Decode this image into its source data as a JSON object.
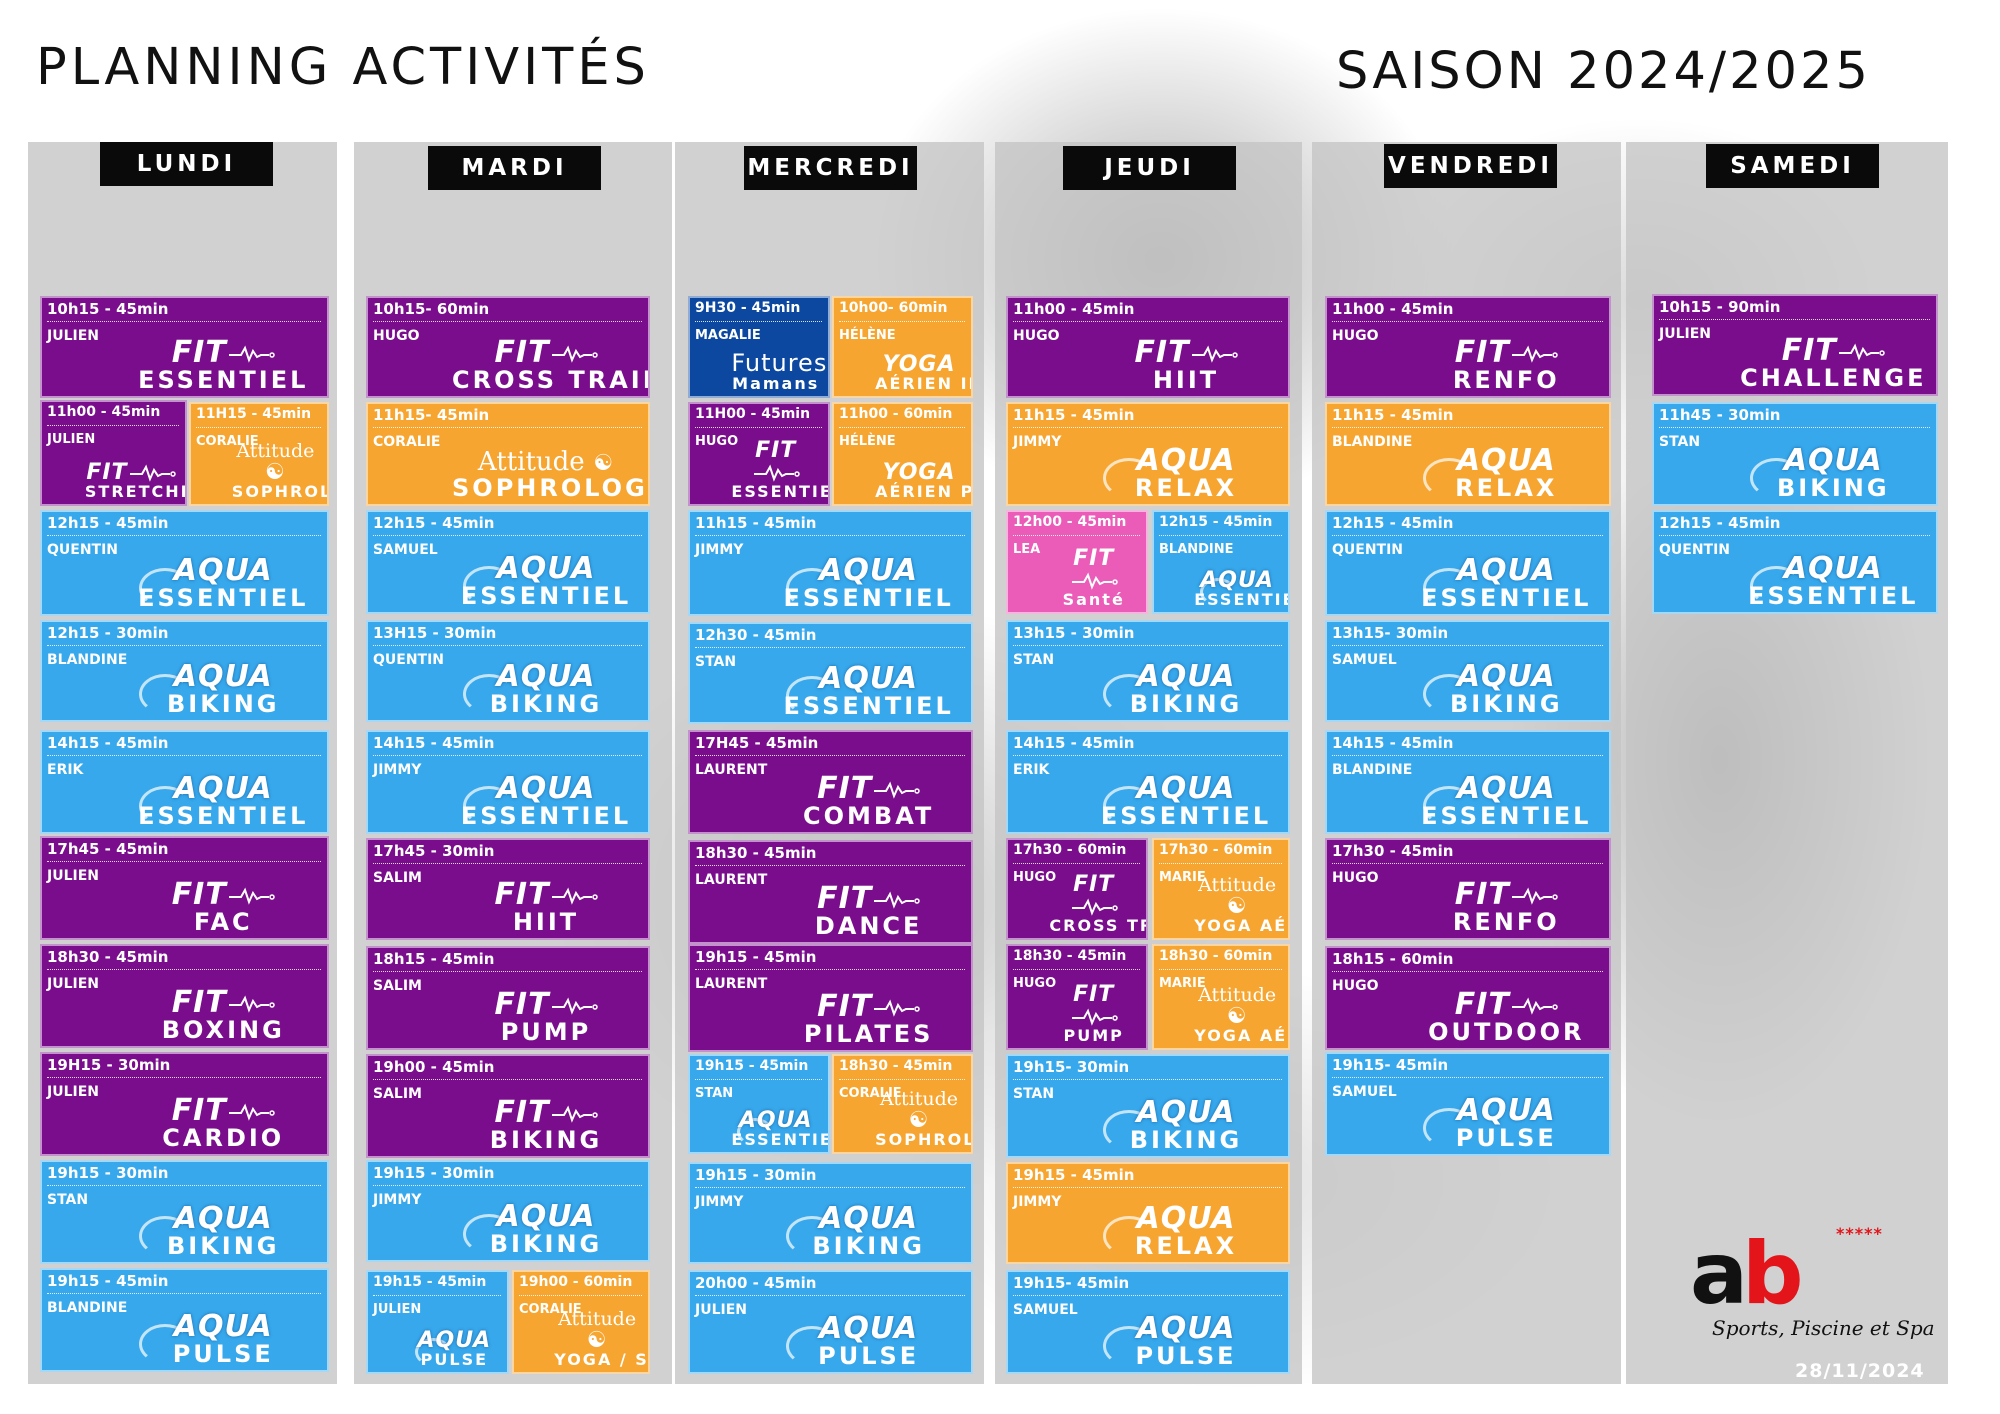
{
  "title": "PLANNING ACTIVITÉS",
  "season": "SAISON 2024/2025",
  "colors": {
    "purple": "#7a0d8c",
    "blue": "#37a8ec",
    "orange": "#f7a531",
    "navy": "#0c48a0",
    "pink": "#ea5cb8",
    "header": "#0a0a0a",
    "brand_red": "#e3151b"
  },
  "days": [
    {
      "label": "LUNDI",
      "sessions": [
        {
          "time": "10h15 - 45min",
          "coach": "JULIEN",
          "brand": "FIT",
          "name": "ESSENTIEL",
          "color": "purple"
        },
        {
          "time": "11h00 - 45min",
          "coach": "JULIEN",
          "brand": "FIT",
          "name": "STRETCHING",
          "color": "purple"
        },
        {
          "time": "11H15 - 45min",
          "coach": "CORALIE",
          "brand": "Attitude",
          "name": "SOPHROLOGIE",
          "color": "orange"
        },
        {
          "time": "12h15 - 45min",
          "coach": "QUENTIN",
          "brand": "AQUA",
          "name": "ESSENTIEL",
          "color": "blue"
        },
        {
          "time": "12h15 - 30min",
          "coach": "BLANDINE",
          "brand": "AQUA",
          "name": "BIKING",
          "color": "blue"
        },
        {
          "time": "14h15 - 45min",
          "coach": "ERIK",
          "brand": "AQUA",
          "name": "ESSENTIEL",
          "color": "blue"
        },
        {
          "time": "17h45 - 45min",
          "coach": "JULIEN",
          "brand": "FIT",
          "name": "FAC",
          "color": "purple"
        },
        {
          "time": "18h30 - 45min",
          "coach": "JULIEN",
          "brand": "FIT",
          "name": "BOXING",
          "color": "purple"
        },
        {
          "time": "19H15 - 30min",
          "coach": "JULIEN",
          "brand": "FIT",
          "name": "CARDIO",
          "color": "purple"
        },
        {
          "time": "19h15 - 30min",
          "coach": "STAN",
          "brand": "AQUA",
          "name": "BIKING",
          "color": "blue"
        },
        {
          "time": "19h15 - 45min",
          "coach": "BLANDINE",
          "brand": "AQUA",
          "name": "PULSE",
          "color": "blue"
        }
      ]
    },
    {
      "label": "MARDI",
      "sessions": [
        {
          "time": "10h15- 60min",
          "coach": "HUGO",
          "brand": "FIT",
          "name": "CROSS TRAINING",
          "color": "purple"
        },
        {
          "time": "11h15- 45min",
          "coach": "CORALIE",
          "brand": "Attitude",
          "name": "SOPHROLOGIE",
          "color": "orange"
        },
        {
          "time": "12h15 - 45min",
          "coach": "SAMUEL",
          "brand": "AQUA",
          "name": "ESSENTIEL",
          "color": "blue"
        },
        {
          "time": "13H15 - 30min",
          "coach": "QUENTIN",
          "brand": "AQUA",
          "name": "BIKING",
          "color": "blue"
        },
        {
          "time": "14h15 - 45min",
          "coach": "JIMMY",
          "brand": "AQUA",
          "name": "ESSENTIEL",
          "color": "blue"
        },
        {
          "time": "17h45 - 30min",
          "coach": "SALIM",
          "brand": "FIT",
          "name": "HIIT",
          "color": "purple"
        },
        {
          "time": "18h15 - 45min",
          "coach": "SALIM",
          "brand": "FIT",
          "name": "PUMP",
          "color": "purple"
        },
        {
          "time": "19h00 - 45min",
          "coach": "SALIM",
          "brand": "FIT",
          "name": "BIKING",
          "color": "purple"
        },
        {
          "time": "19h15 - 30min",
          "coach": "JIMMY",
          "brand": "AQUA",
          "name": "BIKING",
          "color": "blue"
        },
        {
          "time": "19h15 - 45min",
          "coach": "JULIEN",
          "brand": "AQUA",
          "name": "PULSE",
          "color": "blue"
        },
        {
          "time": "19h00 - 60min",
          "coach": "CORALIE",
          "brand": "Attitude",
          "name": "YOGA / SOPHRO",
          "color": "orange"
        }
      ]
    },
    {
      "label": "MERCREDI",
      "sessions": [
        {
          "time": "9H30 - 45min",
          "coach": "MAGALIE",
          "brand": "Futures",
          "name": "Mamans",
          "color": "navy"
        },
        {
          "time": "10h00- 60min",
          "coach": "HÉLÈNE",
          "brand": "YOGA",
          "name": "AÉRIEN INITIATION",
          "color": "orange"
        },
        {
          "time": "11H00 - 45min",
          "coach": "HUGO",
          "brand": "FIT",
          "name": "ESSENTIEL",
          "color": "purple"
        },
        {
          "time": "11h00 - 60min",
          "coach": "HÉLÈNE",
          "brand": "YOGA",
          "name": "AÉRIEN PERFECTIONNEMENT",
          "color": "orange"
        },
        {
          "time": "11h15 - 45min",
          "coach": "JIMMY",
          "brand": "AQUA",
          "name": "ESSENTIEL",
          "color": "blue"
        },
        {
          "time": "12h30 - 45min",
          "coach": "STAN",
          "brand": "AQUA",
          "name": "ESSENTIEL",
          "color": "blue"
        },
        {
          "time": "17H45 - 45min",
          "coach": "LAURENT",
          "brand": "FIT",
          "name": "COMBAT",
          "color": "purple"
        },
        {
          "time": "18h30 - 45min",
          "coach": "LAURENT",
          "brand": "FIT",
          "name": "DANCE",
          "color": "purple"
        },
        {
          "time": "19h15 - 45min",
          "coach": "LAURENT",
          "brand": "FIT",
          "name": "PILATES",
          "color": "purple"
        },
        {
          "time": "19h15 - 45min",
          "coach": "STAN",
          "brand": "AQUA",
          "name": "ESSENTIEL",
          "color": "blue"
        },
        {
          "time": "18h30 - 45min",
          "coach": "CORALIE",
          "brand": "Attitude",
          "name": "SOPHROLOGIE",
          "color": "orange"
        },
        {
          "time": "19h15 - 30min",
          "coach": "JIMMY",
          "brand": "AQUA",
          "name": "BIKING",
          "color": "blue"
        },
        {
          "time": "20h00 - 45min",
          "coach": "JULIEN",
          "brand": "AQUA",
          "name": "PULSE",
          "color": "blue"
        }
      ]
    },
    {
      "label": "JEUDI",
      "sessions": [
        {
          "time": "11h00 - 45min",
          "coach": "HUGO",
          "brand": "FIT",
          "name": "HIIT",
          "color": "purple"
        },
        {
          "time": "11h15 - 45min",
          "coach": "JIMMY",
          "brand": "AQUA",
          "name": "RELAX",
          "color": "orange"
        },
        {
          "time": "12h00 - 45min",
          "coach": "LEA",
          "brand": "FIT",
          "name": "Santé",
          "color": "pink"
        },
        {
          "time": "12h15 - 45min",
          "coach": "BLANDINE",
          "brand": "AQUA",
          "name": "ESSENTIEL",
          "color": "blue"
        },
        {
          "time": "13h15 - 30min",
          "coach": "STAN",
          "brand": "AQUA",
          "name": "BIKING",
          "color": "blue"
        },
        {
          "time": "14h15 - 45min",
          "coach": "ERIK",
          "brand": "AQUA",
          "name": "ESSENTIEL",
          "color": "blue"
        },
        {
          "time": "17h30 - 60min",
          "coach": "HUGO",
          "brand": "FIT",
          "name": "CROSS TRAINING",
          "color": "purple"
        },
        {
          "time": "17h30 - 60min",
          "coach": "MARIE",
          "brand": "Attitude",
          "name": "YOGA AÉRIEN",
          "color": "orange"
        },
        {
          "time": "18h30 - 45min",
          "coach": "HUGO",
          "brand": "FIT",
          "name": "PUMP",
          "color": "purple"
        },
        {
          "time": "18h30 - 60min",
          "coach": "MARIE",
          "brand": "Attitude",
          "name": "YOGA AÉRIEN",
          "color": "orange"
        },
        {
          "time": "19h15- 30min",
          "coach": "STAN",
          "brand": "AQUA",
          "name": "BIKING",
          "color": "blue"
        },
        {
          "time": "19h15 - 45min",
          "coach": "JIMMY",
          "brand": "AQUA",
          "name": "RELAX",
          "color": "orange"
        },
        {
          "time": "19h15- 45min",
          "coach": "SAMUEL",
          "brand": "AQUA",
          "name": "PULSE",
          "color": "blue"
        }
      ]
    },
    {
      "label": "VENDREDI",
      "sessions": [
        {
          "time": "11h00 - 45min",
          "coach": "HUGO",
          "brand": "FIT",
          "name": "RENFO",
          "color": "purple"
        },
        {
          "time": "11h15 - 45min",
          "coach": "BLANDINE",
          "brand": "AQUA",
          "name": "RELAX",
          "color": "orange"
        },
        {
          "time": "12h15 - 45min",
          "coach": "QUENTIN",
          "brand": "AQUA",
          "name": "ESSENTIEL",
          "color": "blue"
        },
        {
          "time": "13h15- 30min",
          "coach": "SAMUEL",
          "brand": "AQUA",
          "name": "BIKING",
          "color": "blue"
        },
        {
          "time": "14h15 - 45min",
          "coach": "BLANDINE",
          "brand": "AQUA",
          "name": "ESSENTIEL",
          "color": "blue"
        },
        {
          "time": "17h30 - 45min",
          "coach": "HUGO",
          "brand": "FIT",
          "name": "RENFO",
          "color": "purple"
        },
        {
          "time": "18h15 - 60min",
          "coach": "HUGO",
          "brand": "FIT",
          "name": "OUTDOOR",
          "color": "purple"
        },
        {
          "time": "19h15- 45min",
          "coach": "SAMUEL",
          "brand": "AQUA",
          "name": "PULSE",
          "color": "blue"
        }
      ]
    },
    {
      "label": "SAMEDI",
      "sessions": [
        {
          "time": "10h15 - 90min",
          "coach": "JULIEN",
          "brand": "FIT",
          "name": "CHALLENGE",
          "color": "purple"
        },
        {
          "time": "11h45 - 30min",
          "coach": "STAN",
          "brand": "AQUA",
          "name": "BIKING",
          "color": "blue"
        },
        {
          "time": "12h15 - 45min",
          "coach": "QUENTIN",
          "brand": "AQUA",
          "name": "ESSENTIEL",
          "color": "blue"
        }
      ]
    }
  ],
  "footer": {
    "logo_a": "a",
    "logo_b": "b",
    "stars": "*****",
    "tagline": "Sports, Piscine et Spa",
    "date": "28/11/2024"
  }
}
